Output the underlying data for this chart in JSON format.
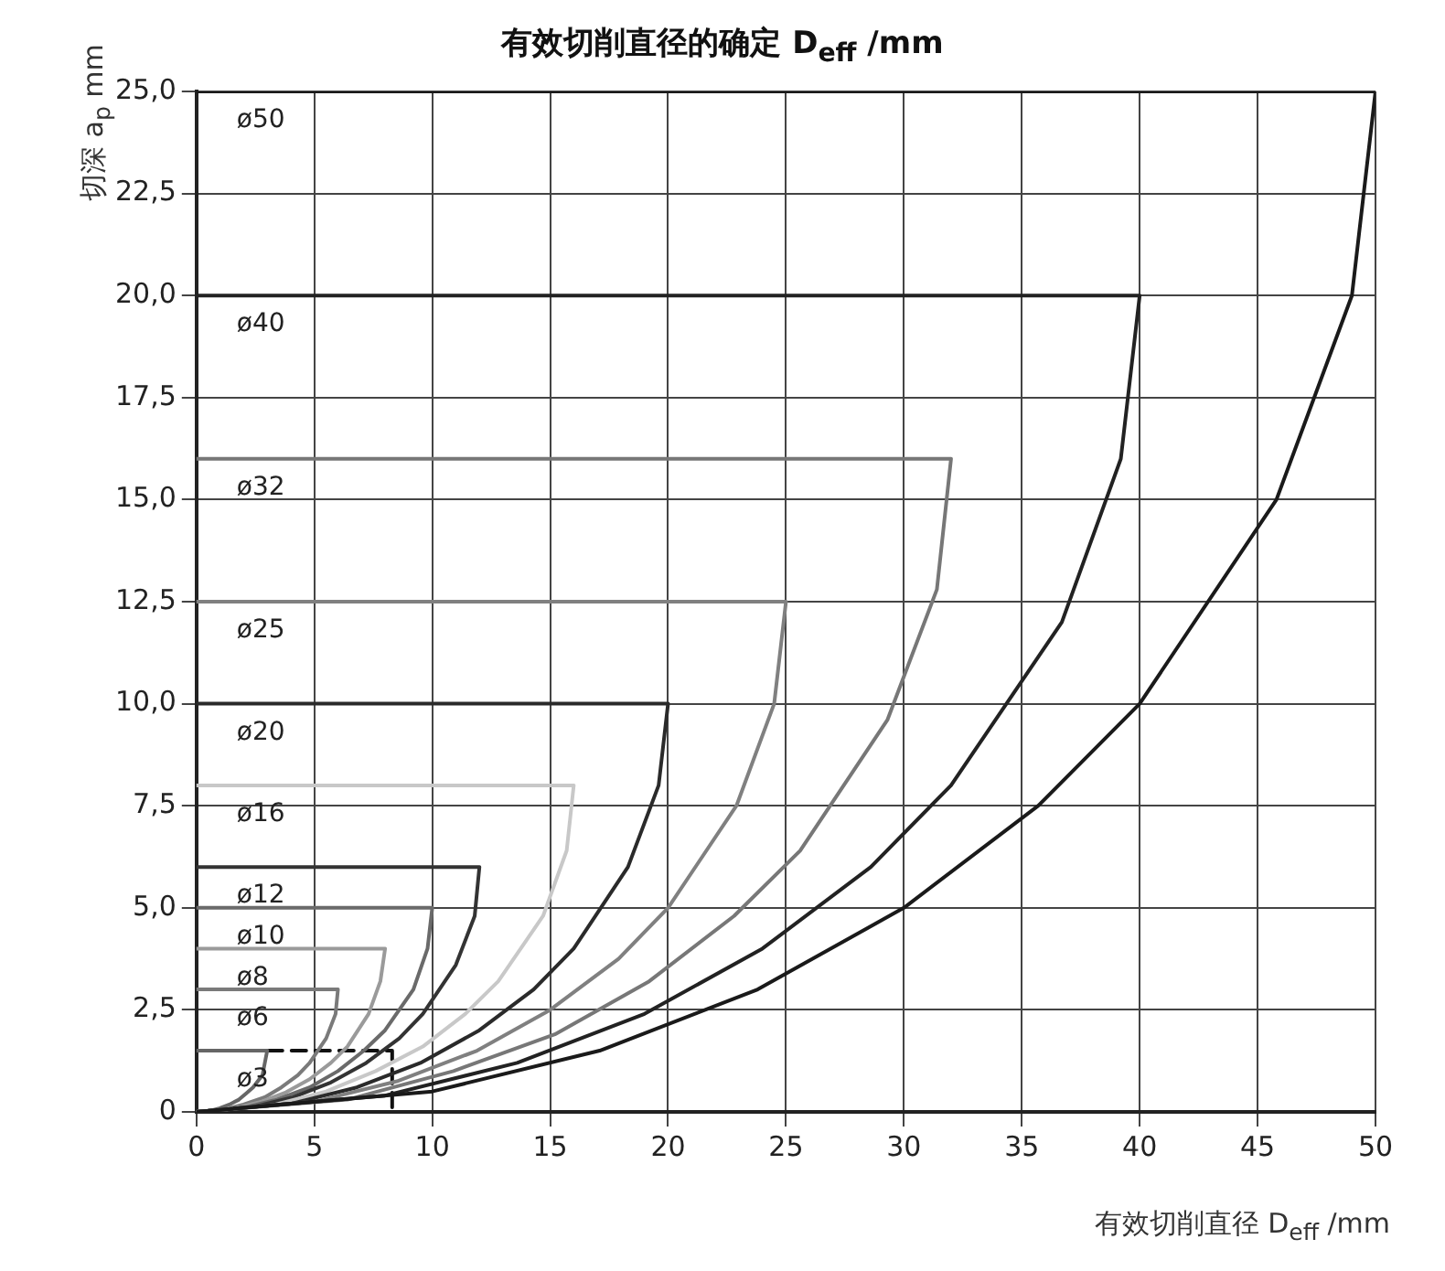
{
  "chart_data": {
    "type": "line",
    "title": "有效切削直径的确定 D$_{eff}$ /mm",
    "xlabel": "有效切削直径 D$_{eff}$ /mm",
    "ylabel": "切深 a$_{p}$ mm",
    "xlim": [
      0,
      50
    ],
    "xticks": [
      0,
      5,
      10,
      15,
      20,
      25,
      30,
      35,
      40,
      45,
      50
    ],
    "ylim": [
      0,
      25
    ],
    "yticks": [
      0,
      {
        "value": 2.5,
        "label": "2,5"
      },
      {
        "value": 5,
        "label": "5,0"
      },
      {
        "value": 7.5,
        "label": "7,5"
      },
      {
        "value": 10,
        "label": "10,0"
      },
      {
        "value": 12.5,
        "label": "12,5"
      },
      {
        "value": 15,
        "label": "15,0"
      },
      {
        "value": 17.5,
        "label": "17,5"
      },
      {
        "value": 20,
        "label": "20,0"
      },
      {
        "value": 22.5,
        "label": "22,5"
      },
      {
        "value": 25,
        "label": "25,0"
      }
    ],
    "grid": true,
    "legend": false,
    "marker": "none",
    "series": [
      {
        "name": "ø50",
        "color": "#1a1a1a",
        "x": [
          0,
          10,
          17.1,
          23.8,
          30,
          35.7,
          40,
          45.8,
          49,
          50,
          0
        ],
        "values": [
          0,
          0.5,
          1.5,
          3,
          5,
          7.5,
          10,
          15,
          20,
          25,
          25
        ]
      },
      {
        "name": "ø40",
        "color": "#222222",
        "x": [
          0,
          8,
          13.6,
          19,
          24,
          28.6,
          32,
          36.7,
          39.2,
          40,
          0
        ],
        "values": [
          0,
          0.4,
          1.2,
          2.4,
          4,
          6,
          8,
          12,
          16,
          20,
          20
        ]
      },
      {
        "name": "ø32",
        "color": "#777777",
        "x": [
          0,
          6.4,
          10.9,
          15.2,
          19.2,
          22.8,
          25.6,
          29.3,
          31.4,
          32,
          0
        ],
        "values": [
          0,
          0.3,
          1,
          1.9,
          3.2,
          4.8,
          6.4,
          9.6,
          12.8,
          16,
          16
        ]
      },
      {
        "name": "ø25",
        "color": "#808080",
        "x": [
          0,
          5,
          8.5,
          11.9,
          15,
          17.9,
          20,
          22.9,
          24.5,
          25,
          0
        ],
        "values": [
          0,
          0.25,
          0.75,
          1.5,
          2.5,
          3.75,
          5,
          7.5,
          10,
          12.5,
          12.5
        ]
      },
      {
        "name": "ø20",
        "color": "#2a2a2a",
        "x": [
          0,
          4,
          6.8,
          9.5,
          12,
          14.3,
          16,
          18.3,
          19.6,
          20,
          0
        ],
        "values": [
          0,
          0.2,
          0.6,
          1.2,
          2,
          3,
          4,
          6,
          8,
          10,
          10
        ]
      },
      {
        "name": "ø16",
        "color": "#c8c8c8",
        "x": [
          0,
          3.2,
          5.5,
          7.6,
          9.6,
          11.4,
          12.8,
          14.7,
          15.7,
          16,
          0
        ],
        "values": [
          0,
          0.16,
          0.5,
          1,
          1.6,
          2.4,
          3.2,
          4.8,
          6.4,
          8,
          8
        ]
      },
      {
        "name": "ø12",
        "color": "#333333",
        "x": [
          0,
          2.4,
          4.1,
          5.7,
          7.2,
          8.6,
          9.6,
          11,
          11.8,
          12,
          0
        ],
        "values": [
          0,
          0.12,
          0.36,
          0.72,
          1.2,
          1.8,
          2.4,
          3.6,
          4.8,
          6,
          6
        ]
      },
      {
        "name": "ø10",
        "color": "#6a6a6a",
        "x": [
          0,
          2,
          3.4,
          4.8,
          6,
          7.1,
          8,
          9.2,
          9.8,
          10,
          0
        ],
        "values": [
          0,
          0.1,
          0.3,
          0.6,
          1,
          1.5,
          2,
          3,
          4,
          5,
          5
        ]
      },
      {
        "name": "ø8",
        "color": "#9a9a9a",
        "x": [
          0,
          1.6,
          2.7,
          3.8,
          4.8,
          5.7,
          6.4,
          7.3,
          7.8,
          8,
          0
        ],
        "values": [
          0,
          0.08,
          0.24,
          0.48,
          0.8,
          1.2,
          1.6,
          2.4,
          3.2,
          4,
          4
        ]
      },
      {
        "name": "ø6",
        "color": "#7a7a7a",
        "x": [
          0,
          1.2,
          2,
          2.9,
          3.6,
          4.3,
          4.8,
          5.5,
          5.9,
          6,
          0
        ],
        "values": [
          0,
          0.06,
          0.18,
          0.36,
          0.6,
          0.9,
          1.2,
          1.8,
          2.4,
          3,
          3
        ]
      },
      {
        "name": "ø3",
        "color": "#666666",
        "x": [
          0,
          0.6,
          1,
          1.4,
          1.8,
          2.1,
          2.4,
          2.8,
          2.9,
          3,
          0
        ],
        "values": [
          0,
          0.03,
          0.09,
          0.18,
          0.3,
          0.45,
          0.6,
          0.9,
          1.2,
          1.5,
          1.5
        ]
      },
      {
        "color": "#111111",
        "line_style": "dashed",
        "x": [
          0,
          8.3,
          8.3
        ],
        "values": [
          1.5,
          1.5,
          0
        ]
      }
    ]
  }
}
